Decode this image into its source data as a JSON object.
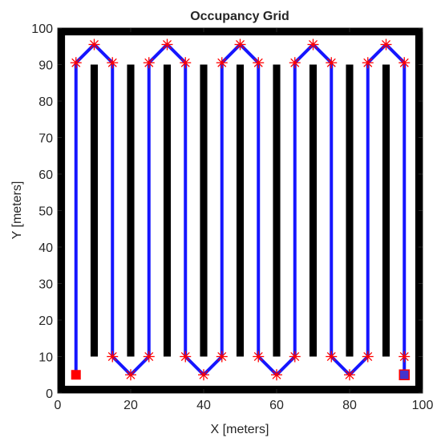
{
  "chart_data": {
    "type": "scatter",
    "title": "Occupancy Grid",
    "xlabel": "X [meters]",
    "ylabel": "Y [meters]",
    "xlim": [
      0,
      100
    ],
    "ylim": [
      0,
      100
    ],
    "xticks": [
      0,
      20,
      40,
      60,
      80,
      100
    ],
    "yticks": [
      0,
      10,
      20,
      30,
      40,
      50,
      60,
      70,
      80,
      90,
      100
    ],
    "grid": false,
    "legend": "none",
    "obstacles": {
      "name": "occupied cells",
      "color": "#000000",
      "x_centers": [
        10,
        20,
        30,
        40,
        50,
        60,
        70,
        80,
        90
      ],
      "width": 2,
      "y_range": [
        10,
        90
      ]
    },
    "map_boundary": {
      "color": "#000000",
      "thickness": 2
    },
    "series": [
      {
        "type": "line",
        "color": "#1515ff",
        "x": [
          5,
          5,
          10,
          15,
          15,
          20,
          25,
          25,
          30,
          35,
          35,
          40,
          45,
          45,
          50,
          55,
          55,
          60,
          65,
          65,
          70,
          75,
          75,
          80,
          85,
          85,
          90,
          95,
          95
        ],
        "y": [
          5,
          90.5,
          95.5,
          90.5,
          10,
          5,
          10,
          90.5,
          95.5,
          90.5,
          10,
          5,
          10,
          90.5,
          95.5,
          90.5,
          10,
          5,
          10,
          90.5,
          95.5,
          90.5,
          10,
          5,
          10,
          90.5,
          95.5,
          90.5,
          5
        ]
      },
      {
        "type": "scatter",
        "marker": "asterisk",
        "color": "#ff0000",
        "x": [
          5,
          10,
          15,
          15,
          20,
          25,
          25,
          30,
          35,
          35,
          40,
          45,
          45,
          50,
          55,
          55,
          60,
          65,
          65,
          70,
          75,
          75,
          80,
          85,
          85,
          90,
          95,
          95
        ],
        "y": [
          90.5,
          95.5,
          90.5,
          10,
          5,
          10,
          90.5,
          95.5,
          90.5,
          10,
          5,
          10,
          90.5,
          95.5,
          90.5,
          10,
          5,
          10,
          90.5,
          95.5,
          90.5,
          10,
          5,
          10,
          90.5,
          95.5,
          90.5,
          10
        ]
      }
    ],
    "start": {
      "x": 5,
      "y": 5,
      "marker": "square",
      "color": "#ff0000"
    },
    "goal": {
      "x": 95,
      "y": 5,
      "marker": "square",
      "color": "#4433cc",
      "edge_color": "#ff0000"
    }
  }
}
